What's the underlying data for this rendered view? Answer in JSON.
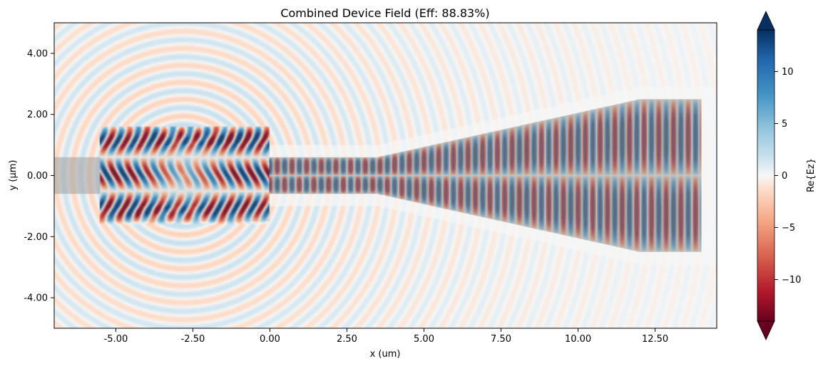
{
  "chart_data": {
    "type": "heatmap",
    "title": "Combined Device Field (Eff: 88.83%)",
    "xlabel": "x (um)",
    "ylabel": "y (μm)",
    "xlim": [
      -7.0,
      14.5
    ],
    "ylim": [
      -5.0,
      5.0
    ],
    "xticks": [
      -5.0,
      -2.5,
      0.0,
      2.5,
      5.0,
      7.5,
      10.0,
      12.5
    ],
    "xtick_labels": [
      "-5.00",
      "-2.50",
      "0.00",
      "2.50",
      "5.00",
      "7.50",
      "10.00",
      "12.50"
    ],
    "yticks": [
      4.0,
      2.0,
      0.0,
      -2.0,
      -4.0
    ],
    "ytick_labels": [
      "4.00",
      "2.00",
      "0.00",
      "-2.00",
      "-4.00"
    ],
    "field_quantity": "Re{Ez}",
    "colormap": "RdBu",
    "colorbar": {
      "label": "Re{Ez}",
      "range": [
        -14,
        14
      ],
      "extend": "both",
      "ticks": [
        10,
        5,
        0,
        -5,
        -10
      ],
      "tick_labels": [
        "10",
        "5",
        "0",
        "−5",
        "−10"
      ]
    },
    "structures": [
      {
        "name": "input waveguide",
        "x": [
          -7.0,
          -5.5
        ],
        "y": [
          -0.6,
          0.6
        ]
      },
      {
        "name": "design region",
        "x": [
          -5.5,
          0.0
        ],
        "y": [
          -1.5,
          1.5
        ]
      },
      {
        "name": "output waveguide",
        "x": [
          0.0,
          3.5
        ],
        "y": [
          -0.6,
          0.6
        ]
      },
      {
        "name": "taper",
        "x": [
          3.5,
          12.0
        ],
        "y_start": [
          -0.6,
          0.6
        ],
        "y_end": [
          -2.5,
          2.5
        ]
      },
      {
        "name": "output section",
        "x": [
          12.0,
          14.0
        ],
        "y": [
          -2.5,
          2.5
        ]
      }
    ]
  },
  "colors": {
    "positive": "#053061",
    "negative": "#67001f",
    "neutral": "#f7f7f7",
    "structure": "#9e9e9e"
  }
}
